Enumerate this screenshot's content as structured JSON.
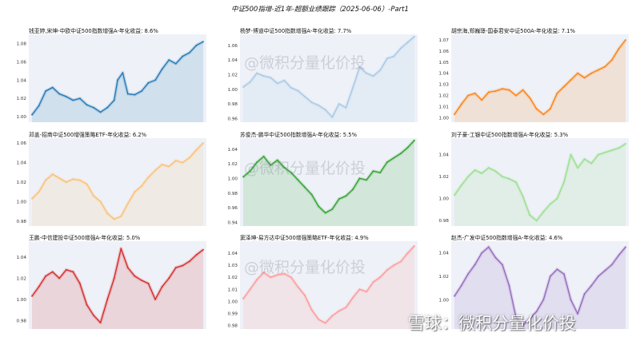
{
  "title": "中证500指增-近1年-超额业绩跟踪（2025-06-06）-Part1",
  "watermark_text": "@微积分量化价投",
  "xueqiu_watermark": "雪球：微积分量化价投",
  "chart_data": [
    {
      "type": "area",
      "title": "钱亚婷,宋坤-中欧中证500指数增强A-年化收益: 8.6%",
      "color": "#1f77b4",
      "yticks": [
        "1.00",
        "1.02",
        "1.04",
        "1.06",
        "1.08"
      ],
      "ylim": [
        0.994,
        1.09
      ],
      "x": [
        0,
        4,
        8,
        12,
        16,
        20,
        24,
        28,
        32,
        36,
        40,
        44,
        48,
        50,
        53,
        56,
        60,
        64,
        68,
        72,
        76,
        80,
        84,
        88,
        92,
        96,
        100
      ],
      "y": [
        1.002,
        1.012,
        1.028,
        1.032,
        1.025,
        1.022,
        1.018,
        1.02,
        1.013,
        1.01,
        1.005,
        1.01,
        1.018,
        1.04,
        1.048,
        1.025,
        1.024,
        1.028,
        1.037,
        1.04,
        1.052,
        1.062,
        1.058,
        1.066,
        1.07,
        1.078,
        1.082
      ]
    },
    {
      "type": "area",
      "title": "杨梦-博道中证500指数增强A-年化收益: 7.7%",
      "color": "#a6c8e6",
      "yticks": [
        "0.96",
        "0.98",
        "1.00",
        "1.02",
        "1.04",
        "1.06"
      ],
      "ylim": [
        0.955,
        1.075
      ],
      "x": [
        0,
        4,
        8,
        12,
        16,
        20,
        24,
        28,
        32,
        36,
        40,
        44,
        48,
        52,
        56,
        60,
        64,
        68,
        72,
        76,
        80,
        84,
        88,
        92,
        96,
        100
      ],
      "y": [
        1.003,
        1.01,
        1.022,
        1.018,
        1.016,
        1.008,
        1.012,
        1.002,
        0.998,
        0.99,
        0.982,
        0.978,
        0.972,
        0.962,
        0.98,
        0.975,
        1.002,
        1.03,
        1.022,
        1.018,
        1.026,
        1.042,
        1.045,
        1.056,
        1.064,
        1.072
      ]
    },
    {
      "type": "area",
      "title": "胡宗海,郑巍璟-国泰君安中证500A-年化收益: 7.1%",
      "color": "#ff7f0e",
      "yticks": [
        "1.00",
        "1.01",
        "1.02",
        "1.03",
        "1.04",
        "1.05",
        "1.06",
        "1.07"
      ],
      "ylim": [
        0.996,
        1.075
      ],
      "x": [
        0,
        4,
        8,
        12,
        16,
        20,
        24,
        28,
        32,
        36,
        40,
        44,
        48,
        52,
        56,
        60,
        64,
        68,
        72,
        76,
        80,
        84,
        88,
        92,
        96,
        100
      ],
      "y": [
        1.003,
        1.012,
        1.02,
        1.022,
        1.016,
        1.023,
        1.024,
        1.026,
        1.025,
        1.02,
        1.025,
        1.018,
        1.008,
        1.003,
        1.008,
        1.022,
        1.028,
        1.034,
        1.04,
        1.036,
        1.04,
        1.043,
        1.046,
        1.052,
        1.062,
        1.07
      ]
    },
    {
      "type": "area",
      "title": "邓盖-招商中证500增强策略ETF-年化收益: 6.2%",
      "color": "#fdbf6f",
      "yticks": [
        "0.98",
        "1.00",
        "1.02",
        "1.04",
        "1.06"
      ],
      "ylim": [
        0.975,
        1.065
      ],
      "x": [
        0,
        4,
        8,
        12,
        16,
        20,
        24,
        28,
        32,
        36,
        40,
        44,
        48,
        52,
        56,
        60,
        64,
        68,
        72,
        76,
        80,
        84,
        88,
        92,
        96,
        100
      ],
      "y": [
        1.003,
        1.01,
        1.022,
        1.028,
        1.024,
        1.02,
        1.023,
        1.022,
        1.018,
        1.006,
        1.0,
        0.988,
        0.982,
        0.985,
        0.998,
        1.01,
        1.016,
        1.025,
        1.032,
        1.038,
        1.036,
        1.042,
        1.04,
        1.045,
        1.053,
        1.06
      ]
    },
    {
      "type": "area",
      "title": "苏俊杰-鹏华中证500指数增强A-年化收益: 5.5%",
      "color": "#2ca02c",
      "yticks": [
        "0.94",
        "0.96",
        "0.98",
        "1.00",
        "1.02",
        "1.04"
      ],
      "ylim": [
        0.935,
        1.055
      ],
      "x": [
        0,
        4,
        8,
        12,
        16,
        20,
        24,
        28,
        32,
        36,
        40,
        44,
        48,
        52,
        56,
        60,
        64,
        68,
        72,
        76,
        80,
        84,
        88,
        92,
        96,
        100
      ],
      "y": [
        1.002,
        1.01,
        1.022,
        1.03,
        1.018,
        1.025,
        1.015,
        1.008,
        0.998,
        0.988,
        0.978,
        0.962,
        0.953,
        0.958,
        0.972,
        0.976,
        0.985,
        1.0,
        0.998,
        1.01,
        1.008,
        1.022,
        1.028,
        1.034,
        1.042,
        1.052
      ]
    },
    {
      "type": "area",
      "title": "刘子豪-工银中证500指数增强A-年化收益: 5.3%",
      "color": "#98df8a",
      "yticks": [
        "0.98",
        "1.00",
        "1.02",
        "1.04"
      ],
      "ylim": [
        0.975,
        1.055
      ],
      "x": [
        0,
        4,
        8,
        12,
        16,
        20,
        24,
        28,
        32,
        36,
        40,
        44,
        48,
        52,
        56,
        60,
        64,
        68,
        72,
        76,
        80,
        84,
        88,
        92,
        96,
        100
      ],
      "y": [
        1.003,
        1.012,
        1.02,
        1.026,
        1.023,
        1.028,
        1.025,
        1.02,
        1.018,
        1.015,
        1.002,
        0.985,
        0.98,
        0.988,
        0.995,
        1.0,
        1.015,
        1.04,
        1.028,
        1.036,
        1.032,
        1.04,
        1.042,
        1.044,
        1.046,
        1.05
      ]
    },
    {
      "type": "area",
      "title": "王鹏-中信建投中证500增强A-年化收益: 5.0%",
      "color": "#d62728",
      "yticks": [
        "0.98",
        "1.00",
        "1.02",
        "1.04"
      ],
      "ylim": [
        0.972,
        1.055
      ],
      "x": [
        0,
        4,
        8,
        12,
        16,
        20,
        24,
        28,
        32,
        36,
        40,
        44,
        48,
        52,
        56,
        60,
        64,
        68,
        72,
        76,
        80,
        84,
        88,
        92,
        96,
        100
      ],
      "y": [
        1.003,
        1.012,
        1.022,
        1.026,
        1.02,
        1.028,
        1.026,
        1.015,
        0.995,
        0.985,
        0.978,
        1.0,
        1.02,
        1.048,
        1.03,
        1.022,
        1.018,
        1.015,
        1.0,
        1.012,
        1.02,
        1.03,
        1.032,
        1.036,
        1.042,
        1.047
      ]
    },
    {
      "type": "area",
      "title": "窦泽坤-易方达中证500增强策略ETF-年化收益: 4.9%",
      "color": "#ff9896",
      "yticks": [
        "0.98",
        "0.99",
        "1.00",
        "1.01",
        "1.02",
        "1.03",
        "1.04"
      ],
      "ylim": [
        0.977,
        1.05
      ],
      "x": [
        0,
        4,
        8,
        12,
        16,
        20,
        24,
        28,
        32,
        36,
        40,
        44,
        48,
        52,
        56,
        60,
        64,
        68,
        72,
        76,
        80,
        84,
        88,
        92,
        96,
        100
      ],
      "y": [
        1.002,
        1.01,
        1.018,
        1.024,
        1.02,
        1.022,
        1.023,
        1.02,
        1.012,
        1.005,
        0.993,
        0.985,
        0.982,
        0.988,
        0.992,
        0.995,
        1.003,
        1.01,
        1.008,
        1.016,
        1.02,
        1.026,
        1.03,
        1.033,
        1.04,
        1.046
      ]
    },
    {
      "type": "area",
      "title": "赵杰-广发中证500指数增强A-年化收益: 4.6%",
      "color": "#9467bd",
      "yticks": [
        "1.00",
        "1.02",
        "1.04"
      ],
      "ylim": [
        0.975,
        1.05
      ],
      "x": [
        0,
        4,
        8,
        12,
        16,
        20,
        24,
        28,
        32,
        36,
        40,
        44,
        48,
        52,
        56,
        60,
        64,
        68,
        72,
        76,
        80,
        84,
        88,
        92,
        96,
        100
      ],
      "y": [
        1.003,
        1.012,
        1.022,
        1.03,
        1.04,
        1.045,
        1.036,
        1.03,
        1.012,
        0.985,
        0.978,
        0.984,
        0.99,
        1.0,
        1.02,
        1.026,
        1.022,
        1.0,
        0.988,
        1.005,
        1.012,
        1.02,
        1.025,
        1.03,
        1.038,
        1.045
      ]
    }
  ]
}
